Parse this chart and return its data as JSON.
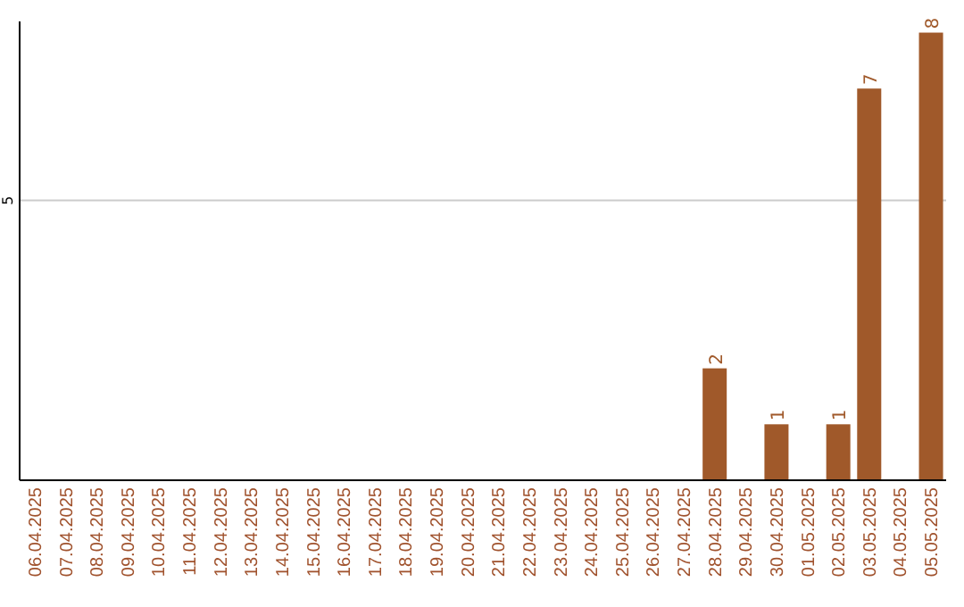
{
  "chart_data": {
    "type": "bar",
    "categories": [
      "06.04.2025",
      "07.04.2025",
      "08.04.2025",
      "09.04.2025",
      "10.04.2025",
      "11.04.2025",
      "12.04.2025",
      "13.04.2025",
      "14.04.2025",
      "15.04.2025",
      "16.04.2025",
      "17.04.2025",
      "18.04.2025",
      "19.04.2025",
      "20.04.2025",
      "21.04.2025",
      "22.04.2025",
      "23.04.2025",
      "24.04.2025",
      "25.04.2025",
      "26.04.2025",
      "27.04.2025",
      "28.04.2025",
      "29.04.2025",
      "30.04.2025",
      "01.05.2025",
      "02.05.2025",
      "03.05.2025",
      "04.05.2025",
      "05.05.2025"
    ],
    "values": [
      null,
      null,
      null,
      null,
      null,
      null,
      null,
      null,
      null,
      null,
      null,
      null,
      null,
      null,
      null,
      null,
      null,
      null,
      null,
      null,
      null,
      null,
      2,
      null,
      1,
      null,
      1,
      7,
      null,
      8
    ],
    "value_labels": [
      null,
      null,
      null,
      null,
      null,
      null,
      null,
      null,
      null,
      null,
      null,
      null,
      null,
      null,
      null,
      null,
      null,
      null,
      null,
      null,
      null,
      null,
      "2",
      null,
      "1",
      null,
      "1",
      "7",
      null,
      "8"
    ],
    "color": "#a0592a",
    "ylim": [
      0,
      8.2
    ],
    "yticks": [
      5
    ],
    "grid": "y"
  }
}
